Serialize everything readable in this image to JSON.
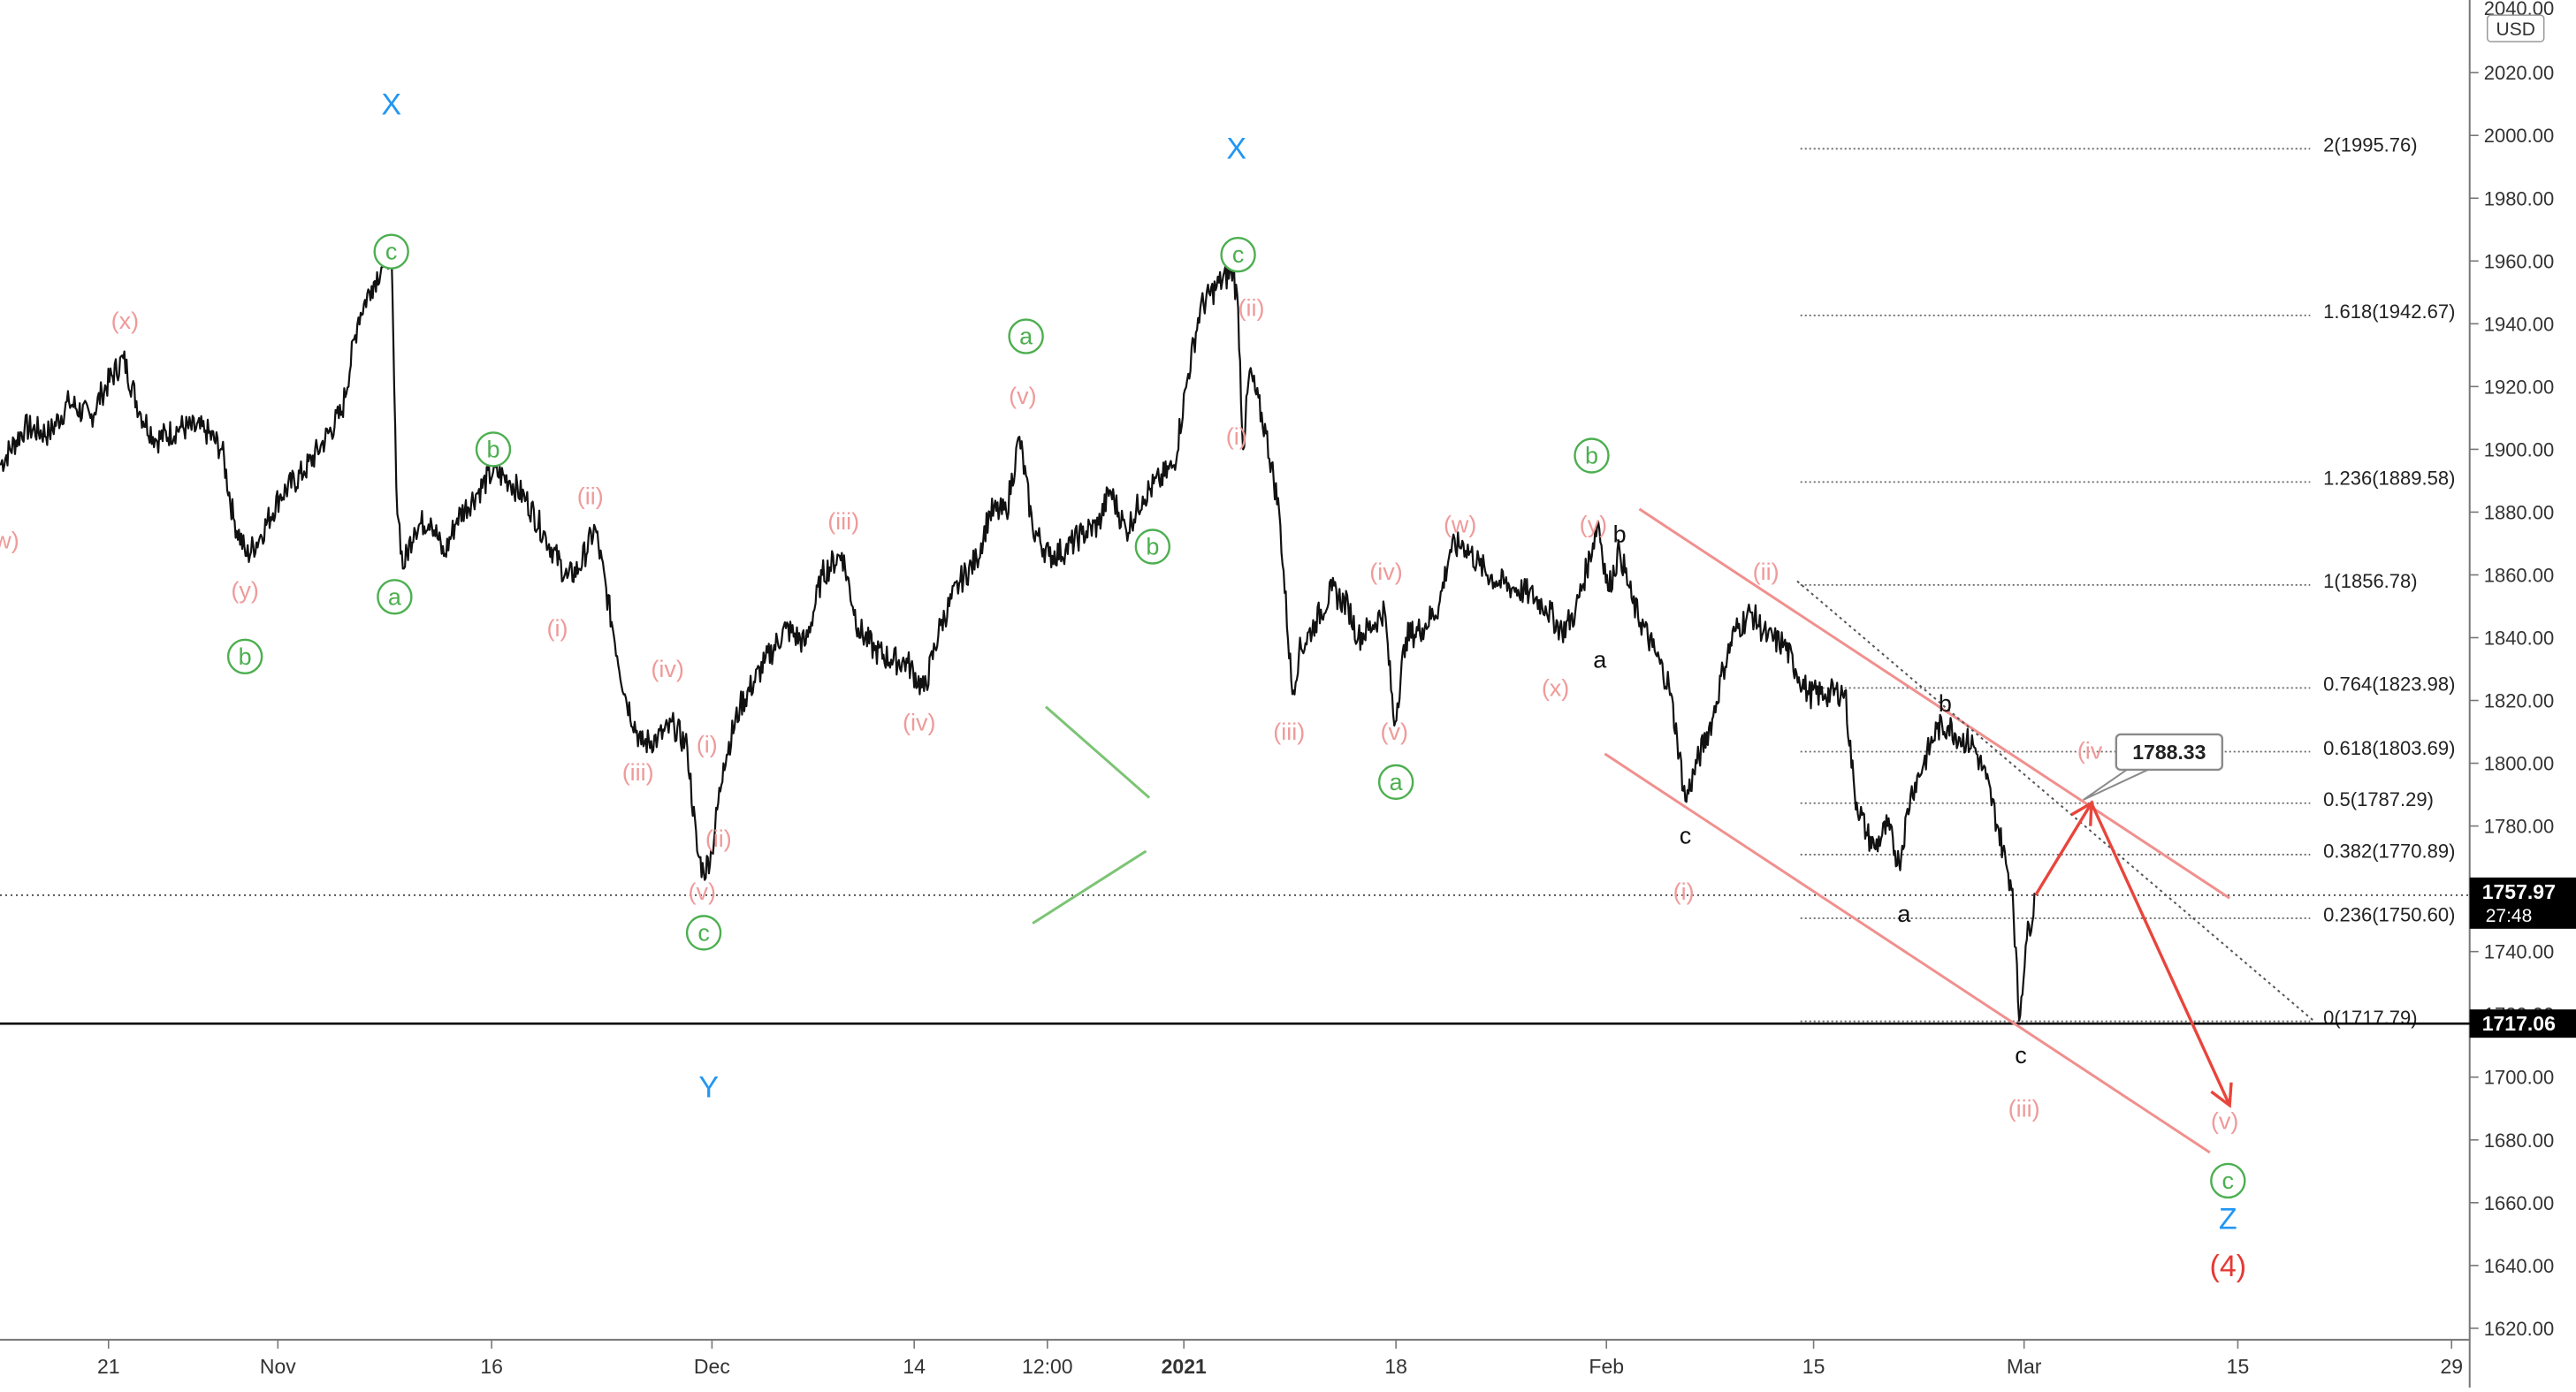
{
  "chart_data": {
    "type": "line",
    "title": "",
    "xlabel": "",
    "ylabel": "",
    "currency": "USD",
    "ylim": [
      1613,
      2045
    ],
    "xlim": [
      0,
      1477
    ],
    "y_ticks": [
      "2020.00",
      "2000.00",
      "1980.00",
      "1960.00",
      "1940.00",
      "1920.00",
      "1900.00",
      "1880.00",
      "1860.00",
      "1840.00",
      "1820.00",
      "1800.00",
      "1780.00",
      "1760.00",
      "1740.00",
      "1720.00",
      "1700.00",
      "1680.00",
      "1660.00",
      "1640.00",
      "1620.00"
    ],
    "y_top_label": "2040.00",
    "x_ticks": [
      {
        "x": 66,
        "label": "21"
      },
      {
        "x": 169,
        "label": "Nov"
      },
      {
        "x": 299,
        "label": "16"
      },
      {
        "x": 433,
        "label": "Dec"
      },
      {
        "x": 556,
        "label": "14"
      },
      {
        "x": 637,
        "label": "12:00"
      },
      {
        "x": 720,
        "label": "2021"
      },
      {
        "x": 849,
        "label": "18"
      },
      {
        "x": 977,
        "label": "Feb"
      },
      {
        "x": 1103,
        "label": "15"
      },
      {
        "x": 1231,
        "label": "Mar"
      },
      {
        "x": 1361,
        "label": "15"
      },
      {
        "x": 1491,
        "label": "29"
      }
    ],
    "series": [
      {
        "values": [
          [
            0,
            1895
          ],
          [
            15,
            1907
          ],
          [
            30,
            1905
          ],
          [
            42,
            1915
          ],
          [
            55,
            1910
          ],
          [
            62,
            1918
          ],
          [
            75,
            1929
          ],
          [
            85,
            1912
          ],
          [
            95,
            1903
          ],
          [
            110,
            1907
          ],
          [
            125,
            1906
          ],
          [
            135,
            1900
          ],
          [
            142,
            1878
          ],
          [
            150,
            1866
          ],
          [
            158,
            1872
          ],
          [
            170,
            1885
          ],
          [
            185,
            1893
          ],
          [
            195,
            1901
          ],
          [
            208,
            1912
          ],
          [
            218,
            1942
          ],
          [
            226,
            1952
          ],
          [
            232,
            1958
          ],
          [
            238,
            1964
          ],
          [
            241,
            1888
          ],
          [
            245,
            1862
          ],
          [
            252,
            1875
          ],
          [
            262,
            1878
          ],
          [
            270,
            1866
          ],
          [
            278,
            1878
          ],
          [
            290,
            1886
          ],
          [
            300,
            1893
          ],
          [
            310,
            1890
          ],
          [
            320,
            1884
          ],
          [
            332,
            1872
          ],
          [
            345,
            1859
          ],
          [
            352,
            1862
          ],
          [
            362,
            1875
          ],
          [
            372,
            1845
          ],
          [
            380,
            1822
          ],
          [
            390,
            1806
          ],
          [
            400,
            1808
          ],
          [
            410,
            1812
          ],
          [
            418,
            1805
          ],
          [
            424,
            1772
          ],
          [
            428,
            1765
          ],
          [
            433,
            1772
          ],
          [
            440,
            1800
          ],
          [
            450,
            1818
          ],
          [
            465,
            1832
          ],
          [
            478,
            1843
          ],
          [
            490,
            1838
          ],
          [
            500,
            1860
          ],
          [
            512,
            1867
          ],
          [
            522,
            1843
          ],
          [
            532,
            1836
          ],
          [
            542,
            1833
          ],
          [
            552,
            1832
          ],
          [
            562,
            1823
          ],
          [
            572,
            1844
          ],
          [
            584,
            1858
          ],
          [
            594,
            1865
          ],
          [
            602,
            1880
          ],
          [
            612,
            1880
          ],
          [
            620,
            1904
          ],
          [
            628,
            1875
          ],
          [
            638,
            1866
          ],
          [
            648,
            1868
          ],
          [
            658,
            1873
          ],
          [
            668,
            1876
          ],
          [
            675,
            1887
          ],
          [
            685,
            1874
          ],
          [
            695,
            1885
          ],
          [
            705,
            1890
          ],
          [
            714,
            1895
          ],
          [
            722,
            1922
          ],
          [
            730,
            1945
          ],
          [
            740,
            1952
          ],
          [
            750,
            1957
          ],
          [
            753,
            1945
          ],
          [
            756,
            1900
          ],
          [
            760,
            1925
          ],
          [
            770,
            1905
          ],
          [
            778,
            1880
          ],
          [
            786,
            1822
          ],
          [
            790,
            1835
          ],
          [
            800,
            1845
          ],
          [
            810,
            1855
          ],
          [
            820,
            1850
          ],
          [
            826,
            1840
          ],
          [
            835,
            1844
          ],
          [
            842,
            1849
          ],
          [
            848,
            1812
          ],
          [
            855,
            1840
          ],
          [
            865,
            1843
          ],
          [
            875,
            1850
          ],
          [
            882,
            1868
          ],
          [
            890,
            1870
          ],
          [
            900,
            1863
          ],
          [
            910,
            1858
          ],
          [
            920,
            1856
          ],
          [
            930,
            1854
          ],
          [
            940,
            1850
          ],
          [
            950,
            1842
          ],
          [
            958,
            1848
          ],
          [
            965,
            1862
          ],
          [
            972,
            1877
          ],
          [
            978,
            1855
          ],
          [
            985,
            1868
          ],
          [
            993,
            1851
          ],
          [
            1005,
            1837
          ],
          [
            1015,
            1825
          ],
          [
            1020,
            1808
          ],
          [
            1025,
            1788
          ],
          [
            1032,
            1800
          ],
          [
            1042,
            1815
          ],
          [
            1048,
            1830
          ],
          [
            1055,
            1842
          ],
          [
            1065,
            1848
          ],
          [
            1075,
            1840
          ],
          [
            1085,
            1838
          ],
          [
            1092,
            1830
          ],
          [
            1100,
            1822
          ],
          [
            1110,
            1822
          ],
          [
            1122,
            1823
          ],
          [
            1128,
            1790
          ],
          [
            1135,
            1778
          ],
          [
            1140,
            1773
          ],
          [
            1148,
            1780
          ],
          [
            1155,
            1768
          ],
          [
            1162,
            1790
          ],
          [
            1170,
            1800
          ],
          [
            1178,
            1811
          ],
          [
            1185,
            1812
          ],
          [
            1192,
            1808
          ],
          [
            1200,
            1806
          ],
          [
            1208,
            1795
          ],
          [
            1215,
            1780
          ],
          [
            1220,
            1768
          ],
          [
            1224,
            1760
          ],
          [
            1228,
            1718
          ],
          [
            1232,
            1742
          ],
          [
            1238,
            1757.97
          ]
        ]
      }
    ],
    "fib_levels": [
      {
        "label": "2(1995.76)",
        "value": 1995.76
      },
      {
        "label": "1.618(1942.67)",
        "value": 1942.67
      },
      {
        "label": "1.236(1889.58)",
        "value": 1889.58
      },
      {
        "label": "1(1856.78)",
        "value": 1856.78
      },
      {
        "label": "0.764(1823.98)",
        "value": 1823.98
      },
      {
        "label": "0.618(1803.69)",
        "value": 1803.69
      },
      {
        "label": "0.5(1787.29)",
        "value": 1787.29
      },
      {
        "label": "0.382(1770.89)",
        "value": 1770.89
      },
      {
        "label": "0.236(1750.60)",
        "value": 1750.6
      },
      {
        "label": "0(1717.79)",
        "value": 1717.79
      }
    ],
    "fib_start_x": 1095,
    "horizontal_lines": [
      {
        "value": 1717.06,
        "style": "solid",
        "color": "#000000"
      },
      {
        "value": 1757.97,
        "style": "dotted",
        "color": "#444444"
      }
    ],
    "price_badges": [
      {
        "value": 1717.06,
        "label": "1717.06"
      },
      {
        "value": 1757.97,
        "label": "1757.97",
        "sub": "27:48"
      }
    ],
    "callout": {
      "x": 1267,
      "y": 1788.33,
      "label": "1788.33"
    },
    "trendlines": [
      {
        "from": [
          628,
          1749
        ],
        "to": [
          697,
          1772
        ],
        "color": "#7cc474"
      },
      {
        "from": [
          636,
          1818
        ],
        "to": [
          699,
          1789
        ],
        "color": "#7cc474"
      },
      {
        "from": [
          997,
          1881
        ],
        "to": [
          1356,
          1757
        ],
        "color": "#f0908e"
      },
      {
        "from": [
          976,
          1803
        ],
        "to": [
          1344,
          1676
        ],
        "color": "#f0908e"
      },
      {
        "from": [
          1093,
          1858
        ],
        "to": [
          1407,
          1718
        ],
        "color": "#555555",
        "style": "dotted"
      }
    ],
    "projection": {
      "color": "#e8453c",
      "points": [
        [
          1238,
          1757.97
        ],
        [
          1272,
          1787.29
        ],
        [
          1356,
          1691
        ]
      ]
    },
    "wave_labels": [
      {
        "x": 238,
        "y": 2010,
        "text": "X",
        "style": "blue"
      },
      {
        "x": 752,
        "y": 1996,
        "text": "X",
        "style": "blue"
      },
      {
        "x": 431,
        "y": 1697,
        "text": "Y",
        "style": "blue"
      },
      {
        "x": 1355,
        "y": 1655,
        "text": "Z",
        "style": "blue"
      },
      {
        "x": 1355,
        "y": 1640,
        "text": "(4)",
        "style": "red"
      },
      {
        "x": 238,
        "y": 1963,
        "text": "c",
        "style": "green-circle"
      },
      {
        "x": 753,
        "y": 1962,
        "text": "c",
        "style": "green-circle"
      },
      {
        "x": 624,
        "y": 1936,
        "text": "a",
        "style": "green-circle"
      },
      {
        "x": 300,
        "y": 1900,
        "text": "b",
        "style": "green-circle"
      },
      {
        "x": 968,
        "y": 1898,
        "text": "b",
        "style": "green-circle"
      },
      {
        "x": 701,
        "y": 1869,
        "text": "b",
        "style": "green-circle"
      },
      {
        "x": 240,
        "y": 1853,
        "text": "a",
        "style": "green-circle"
      },
      {
        "x": 149,
        "y": 1834,
        "text": "b",
        "style": "green-circle"
      },
      {
        "x": 849,
        "y": 1794,
        "text": "a",
        "style": "green-circle"
      },
      {
        "x": 428,
        "y": 1746,
        "text": "c",
        "style": "green-circle"
      },
      {
        "x": 1355,
        "y": 1667,
        "text": "c",
        "style": "green-circle"
      },
      {
        "x": 76,
        "y": 1941,
        "text": "(x)",
        "style": "pink"
      },
      {
        "x": 4,
        "y": 1871,
        "text": "w)",
        "style": "pink"
      },
      {
        "x": 149,
        "y": 1855,
        "text": "(y)",
        "style": "pink"
      },
      {
        "x": 359,
        "y": 1885,
        "text": "(ii)",
        "style": "pink"
      },
      {
        "x": 339,
        "y": 1843,
        "text": "(i)",
        "style": "pink"
      },
      {
        "x": 406,
        "y": 1830,
        "text": "(iv)",
        "style": "pink"
      },
      {
        "x": 388,
        "y": 1797,
        "text": "(iii)",
        "style": "pink"
      },
      {
        "x": 430,
        "y": 1806,
        "text": "(i)",
        "style": "pink"
      },
      {
        "x": 437,
        "y": 1776,
        "text": "(ii)",
        "style": "pink"
      },
      {
        "x": 427,
        "y": 1759,
        "text": "(v)",
        "style": "pink"
      },
      {
        "x": 513,
        "y": 1877,
        "text": "(iii)",
        "style": "pink"
      },
      {
        "x": 559,
        "y": 1813,
        "text": "(iv)",
        "style": "pink"
      },
      {
        "x": 622,
        "y": 1917,
        "text": "(v)",
        "style": "pink"
      },
      {
        "x": 761,
        "y": 1945,
        "text": "(ii)",
        "style": "pink"
      },
      {
        "x": 752,
        "y": 1904,
        "text": "(i)",
        "style": "pink"
      },
      {
        "x": 784,
        "y": 1810,
        "text": "(iii)",
        "style": "pink"
      },
      {
        "x": 843,
        "y": 1861,
        "text": "(iv)",
        "style": "pink"
      },
      {
        "x": 848,
        "y": 1810,
        "text": "(v)",
        "style": "pink"
      },
      {
        "x": 888,
        "y": 1876,
        "text": "(w)",
        "style": "pink"
      },
      {
        "x": 969,
        "y": 1876,
        "text": "(y)",
        "style": "pink"
      },
      {
        "x": 946,
        "y": 1824,
        "text": "(x)",
        "style": "pink"
      },
      {
        "x": 1074,
        "y": 1861,
        "text": "(ii)",
        "style": "pink"
      },
      {
        "x": 1024,
        "y": 1759,
        "text": "(i)",
        "style": "pink"
      },
      {
        "x": 1271,
        "y": 1804,
        "text": "(iv",
        "style": "pink"
      },
      {
        "x": 1231,
        "y": 1690,
        "text": "(iii)",
        "style": "pink"
      },
      {
        "x": 1353,
        "y": 1686,
        "text": "(v)",
        "style": "pink"
      },
      {
        "x": 985,
        "y": 1873,
        "text": "b",
        "style": "black"
      },
      {
        "x": 973,
        "y": 1833,
        "text": "a",
        "style": "black"
      },
      {
        "x": 1025,
        "y": 1777,
        "text": "c",
        "style": "black"
      },
      {
        "x": 1183,
        "y": 1819,
        "text": "b",
        "style": "black"
      },
      {
        "x": 1158,
        "y": 1752,
        "text": "a",
        "style": "black"
      },
      {
        "x": 1229,
        "y": 1707,
        "text": "c",
        "style": "black"
      }
    ]
  }
}
